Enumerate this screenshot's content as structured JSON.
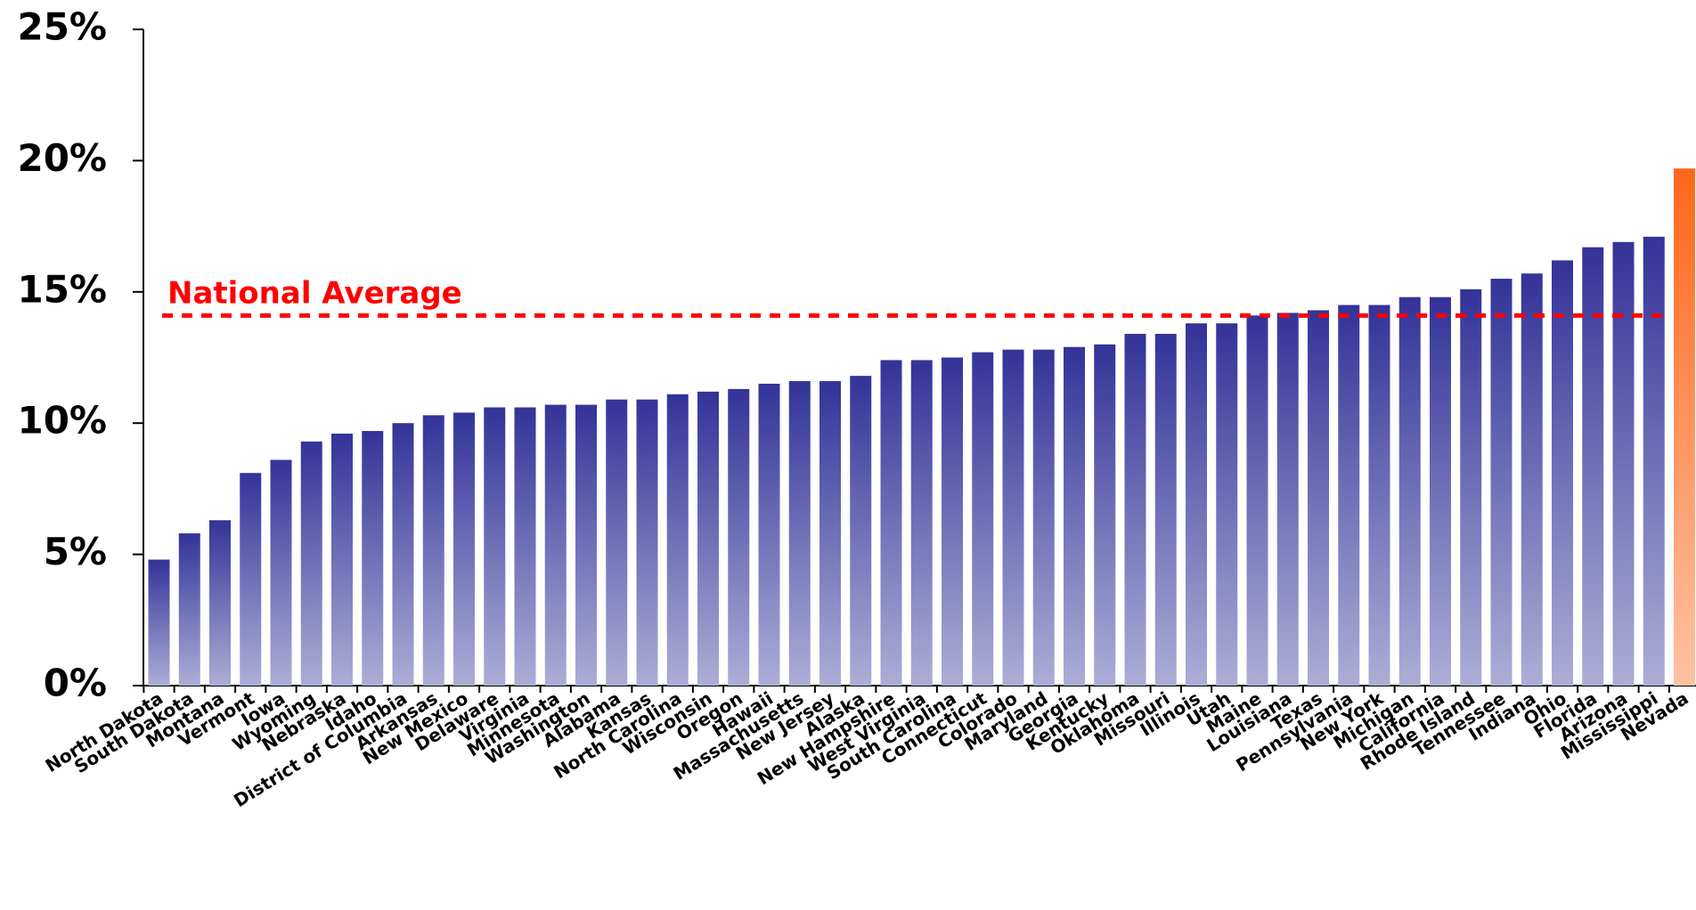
{
  "chart_data": {
    "type": "bar",
    "categories": [
      "North Dakota",
      "South Dakota",
      "Montana",
      "Vermont",
      "Iowa",
      "Wyoming",
      "Nebraska",
      "Idaho",
      "District of Columbia",
      "Arkansas",
      "New Mexico",
      "Delaware",
      "Virginia",
      "Minnesota",
      "Washington",
      "Alabama",
      "Kansas",
      "North Carolina",
      "Wisconsin",
      "Oregon",
      "Hawaii",
      "Massachusetts",
      "New Jersey",
      "Alaska",
      "New Hampshire",
      "West Virginia",
      "South Carolina",
      "Connecticut",
      "Colorado",
      "Maryland",
      "Georgia",
      "Kentucky",
      "Oklahoma",
      "Missouri",
      "Illinois",
      "Utah",
      "Maine",
      "Louisiana",
      "Texas",
      "Pennsylvania",
      "New York",
      "Michigan",
      "California",
      "Rhode Island",
      "Tennessee",
      "Indiana",
      "Ohio",
      "Florida",
      "Arizona",
      "Mississippi",
      "Nevada"
    ],
    "values": [
      4.8,
      5.8,
      6.3,
      8.1,
      8.6,
      9.3,
      9.6,
      9.7,
      10.0,
      10.3,
      10.4,
      10.6,
      10.6,
      10.7,
      10.7,
      10.9,
      10.9,
      11.1,
      11.2,
      11.3,
      11.5,
      11.6,
      11.6,
      11.8,
      12.4,
      12.4,
      12.5,
      12.7,
      12.8,
      12.8,
      12.9,
      13.0,
      13.4,
      13.4,
      13.8,
      13.8,
      14.1,
      14.2,
      14.3,
      14.5,
      14.5,
      14.8,
      14.8,
      15.1,
      15.5,
      15.7,
      16.2,
      16.7,
      16.9,
      17.1,
      19.7
    ],
    "colors": [
      "#333399",
      "#333399",
      "#333399",
      "#333399",
      "#333399",
      "#333399",
      "#333399",
      "#333399",
      "#333399",
      "#333399",
      "#333399",
      "#333399",
      "#333399",
      "#333399",
      "#333399",
      "#333399",
      "#333399",
      "#333399",
      "#333399",
      "#333399",
      "#333399",
      "#333399",
      "#333399",
      "#333399",
      "#333399",
      "#333399",
      "#333399",
      "#333399",
      "#333399",
      "#333399",
      "#333399",
      "#333399",
      "#333399",
      "#333399",
      "#333399",
      "#333399",
      "#333399",
      "#333399",
      "#333399",
      "#333399",
      "#333399",
      "#333399",
      "#333399",
      "#333399",
      "#333399",
      "#333399",
      "#333399",
      "#333399",
      "#333399",
      "#333399",
      "#ff6619"
    ],
    "ylim": [
      0,
      25
    ],
    "yticks": [
      {
        "value": 0,
        "label": "0%"
      },
      {
        "value": 5,
        "label": "5%"
      },
      {
        "value": 10,
        "label": "10%"
      },
      {
        "value": 15,
        "label": "15%"
      },
      {
        "value": 20,
        "label": "20%"
      },
      {
        "value": 25,
        "label": "25%"
      }
    ],
    "reference": {
      "label": "National Average",
      "value": 14.1,
      "color": "#ff0000"
    }
  }
}
